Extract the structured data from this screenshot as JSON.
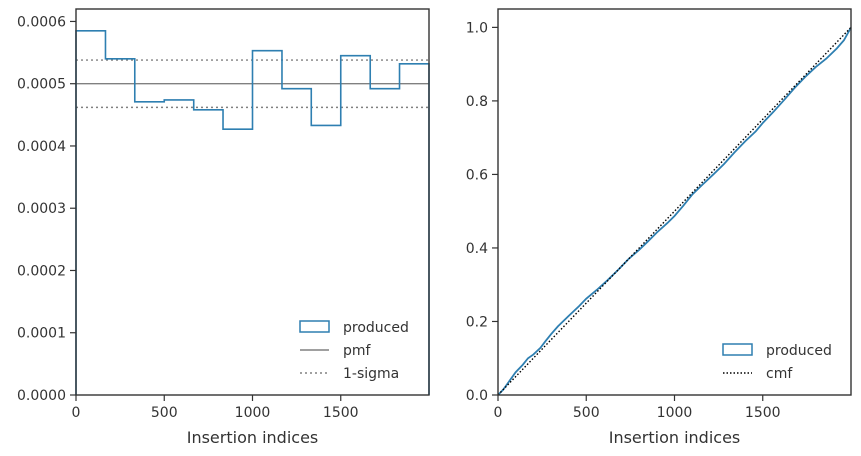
{
  "chart_data": [
    {
      "type": "histogram-step",
      "xlabel": "Insertion indices",
      "ylabel": "",
      "xlim": [
        0,
        2000
      ],
      "ylim": [
        0,
        0.00062
      ],
      "xticks": [
        0,
        500,
        1000,
        1500
      ],
      "xtick_labels": [
        "0",
        "500",
        "1000",
        "1500"
      ],
      "yticks": [
        0,
        0.0001,
        0.0002,
        0.0003,
        0.0004,
        0.0005,
        0.0006
      ],
      "ytick_labels": [
        "0.0000",
        "0.0001",
        "0.0002",
        "0.0003",
        "0.0004",
        "0.0005",
        "0.0006"
      ],
      "bin_edges": [
        0,
        167,
        333,
        500,
        667,
        833,
        1000,
        1167,
        1333,
        1500,
        1667,
        1833,
        2000
      ],
      "values": [
        0.000585,
        0.00054,
        0.000471,
        0.000474,
        0.000458,
        0.000427,
        0.000553,
        0.000492,
        0.000433,
        0.000545,
        0.000492,
        0.000532
      ],
      "pmf": 0.0005,
      "sigma_band": [
        0.000462,
        0.000538
      ],
      "legend": [
        "produced",
        "pmf",
        "1-sigma"
      ],
      "legend_location": "lower-right",
      "colors": {
        "produced": "#2e7fb1",
        "pmf": "#808080",
        "sigma": "#808080"
      }
    },
    {
      "type": "line",
      "xlabel": "Insertion indices",
      "ylabel": "",
      "xlim": [
        0,
        2000
      ],
      "ylim": [
        0,
        1.05
      ],
      "xticks": [
        0,
        500,
        1000,
        1500
      ],
      "xtick_labels": [
        "0",
        "500",
        "1000",
        "1500"
      ],
      "yticks": [
        0,
        0.2,
        0.4,
        0.6,
        0.8,
        1.0
      ],
      "ytick_labels": [
        "0.0",
        "0.2",
        "0.4",
        "0.6",
        "0.8",
        "1.0"
      ],
      "series": [
        {
          "name": "produced",
          "x": [
            0,
            30,
            60,
            100,
            140,
            170,
            200,
            240,
            270,
            300,
            340,
            400,
            460,
            500,
            560,
            620,
            680,
            740,
            800,
            850,
            900,
            960,
            1000,
            1050,
            1100,
            1160,
            1220,
            1280,
            1340,
            1400,
            1460,
            1500,
            1560,
            1620,
            1680,
            1740,
            1800,
            1860,
            1920,
            1960,
            2000
          ],
          "y": [
            0,
            0.015,
            0.035,
            0.062,
            0.082,
            0.1,
            0.11,
            0.128,
            0.147,
            0.165,
            0.187,
            0.215,
            0.242,
            0.262,
            0.286,
            0.312,
            0.34,
            0.37,
            0.395,
            0.418,
            0.442,
            0.468,
            0.487,
            0.515,
            0.545,
            0.573,
            0.6,
            0.628,
            0.66,
            0.69,
            0.717,
            0.74,
            0.77,
            0.802,
            0.835,
            0.865,
            0.892,
            0.915,
            0.943,
            0.965,
            1.0
          ]
        },
        {
          "name": "cmf",
          "x": [
            0,
            2000
          ],
          "y": [
            0,
            1.0
          ]
        }
      ],
      "legend": [
        "produced",
        "cmf"
      ],
      "legend_location": "lower-right",
      "colors": {
        "produced": "#2e7fb1",
        "cmf": "#000000"
      }
    }
  ]
}
